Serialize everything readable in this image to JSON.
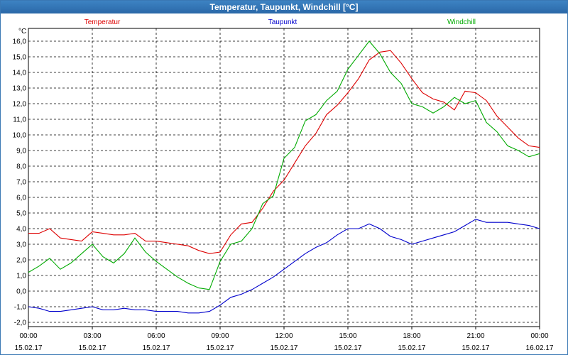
{
  "window": {
    "title": "Temperatur, Taupunkt, Windchill [°C]"
  },
  "chart_data": {
    "type": "line",
    "title": "Temperatur, Taupunkt, Windchill [°C]",
    "ylabel": "°C",
    "xlabel": "",
    "ylim": [
      -2.0,
      16.0
    ],
    "yticks": [
      "16,0",
      "15,0",
      "14,0",
      "13,0",
      "12,0",
      "11,0",
      "10,0",
      "9,0",
      "8,0",
      "7,0",
      "6,0",
      "5,0",
      "4,0",
      "3,0",
      "2,0",
      "1,0",
      "0,0",
      "-1,0",
      "-2,0"
    ],
    "xlim": [
      0,
      24
    ],
    "xticks": [
      {
        "time": "00:00",
        "date": "15.02.17"
      },
      {
        "time": "03:00",
        "date": "15.02.17"
      },
      {
        "time": "06:00",
        "date": "15.02.17"
      },
      {
        "time": "09:00",
        "date": "15.02.17"
      },
      {
        "time": "12:00",
        "date": "15.02.17"
      },
      {
        "time": "15:00",
        "date": "15.02.17"
      },
      {
        "time": "18:00",
        "date": "15.02.17"
      },
      {
        "time": "21:00",
        "date": "15.02.17"
      },
      {
        "time": "00:00",
        "date": "16.02.17"
      }
    ],
    "grid": true,
    "legend_position": "top",
    "series": [
      {
        "name": "Temperatur",
        "color": "#dd0000",
        "x": [
          0,
          0.5,
          1,
          1.5,
          2,
          2.5,
          3,
          3.5,
          4,
          4.5,
          5,
          5.5,
          6,
          6.5,
          7,
          7.5,
          8,
          8.5,
          9,
          9.5,
          10,
          10.5,
          11,
          11.5,
          12,
          12.5,
          13,
          13.5,
          14,
          14.5,
          15,
          15.5,
          16,
          16.5,
          17,
          17.5,
          18,
          18.5,
          19,
          19.5,
          20,
          20.5,
          21,
          21.5,
          22,
          22.5,
          23,
          23.5,
          24
        ],
        "values": [
          3.7,
          3.7,
          4.0,
          3.4,
          3.3,
          3.2,
          3.8,
          3.7,
          3.6,
          3.6,
          3.7,
          3.2,
          3.2,
          3.1,
          3.0,
          2.9,
          2.6,
          2.4,
          2.5,
          3.6,
          4.3,
          4.4,
          5.3,
          6.4,
          7.1,
          8.2,
          9.3,
          10.1,
          11.3,
          11.9,
          12.7,
          13.6,
          14.8,
          15.3,
          15.4,
          14.6,
          13.6,
          12.7,
          12.3,
          12.1,
          11.6,
          12.8,
          12.7,
          12.2,
          11.2,
          10.5,
          9.8,
          9.3,
          9.2
        ]
      },
      {
        "name": "Taupunkt",
        "color": "#0000cc",
        "x": [
          0,
          0.5,
          1,
          1.5,
          2,
          2.5,
          3,
          3.5,
          4,
          4.5,
          5,
          5.5,
          6,
          6.5,
          7,
          7.5,
          8,
          8.5,
          9,
          9.5,
          10,
          10.5,
          11,
          11.5,
          12,
          12.5,
          13,
          13.5,
          14,
          14.5,
          15,
          15.5,
          16,
          16.5,
          17,
          17.5,
          18,
          18.5,
          19,
          19.5,
          20,
          20.5,
          21,
          21.5,
          22,
          22.5,
          23,
          23.5,
          24
        ],
        "values": [
          -1.0,
          -1.1,
          -1.3,
          -1.3,
          -1.2,
          -1.1,
          -1.0,
          -1.2,
          -1.2,
          -1.1,
          -1.2,
          -1.2,
          -1.3,
          -1.3,
          -1.3,
          -1.4,
          -1.4,
          -1.3,
          -0.9,
          -0.4,
          -0.2,
          0.1,
          0.5,
          0.9,
          1.4,
          1.9,
          2.4,
          2.8,
          3.1,
          3.6,
          4.0,
          4.0,
          4.3,
          4.0,
          3.5,
          3.3,
          3.0,
          3.2,
          3.4,
          3.6,
          3.8,
          4.2,
          4.6,
          4.4,
          4.4,
          4.4,
          4.3,
          4.2,
          4.0
        ]
      },
      {
        "name": "Windchill",
        "color": "#00aa00",
        "x": [
          0,
          0.5,
          1,
          1.5,
          2,
          2.5,
          3,
          3.5,
          4,
          4.5,
          5,
          5.5,
          6,
          6.5,
          7,
          7.5,
          8,
          8.5,
          9,
          9.5,
          10,
          10.5,
          11,
          11.5,
          12,
          12.5,
          13,
          13.5,
          14,
          14.5,
          15,
          15.5,
          16,
          16.5,
          17,
          17.5,
          18,
          18.5,
          19,
          19.5,
          20,
          20.5,
          21,
          21.5,
          22,
          22.5,
          23,
          23.5,
          24
        ],
        "values": [
          1.2,
          1.6,
          2.1,
          1.4,
          1.8,
          2.4,
          3.0,
          2.2,
          1.8,
          2.4,
          3.4,
          2.5,
          1.9,
          1.4,
          0.9,
          0.5,
          0.2,
          0.1,
          1.9,
          3.0,
          3.2,
          4.0,
          5.6,
          6.1,
          8.5,
          9.2,
          10.9,
          11.3,
          12.2,
          12.8,
          14.2,
          15.1,
          16.0,
          15.2,
          14.0,
          13.3,
          12.0,
          11.8,
          11.4,
          11.8,
          12.4,
          12.0,
          12.2,
          10.8,
          10.2,
          9.3,
          9.0,
          8.6,
          8.8
        ]
      }
    ]
  }
}
